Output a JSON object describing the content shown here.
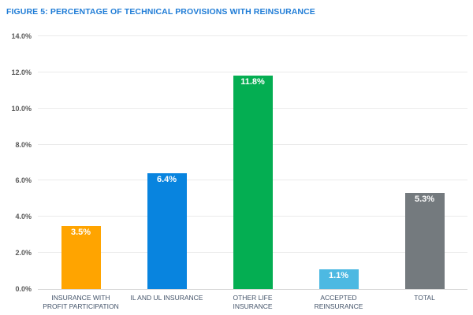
{
  "title": "FIGURE 5: PERCENTAGE OF TECHNICAL PROVISIONS WITH REINSURANCE",
  "colors": {
    "title_text": "#1F7CD6",
    "gridline": "#EBEBEB",
    "axis_line": "#D6D6D6",
    "y_tick_text": "#595959",
    "x_label_text": "#44546A",
    "value_label_text": "#FFFFFF",
    "background": "#FFFFFF"
  },
  "chart_data": {
    "type": "bar",
    "title": "FIGURE 5: PERCENTAGE OF TECHNICAL PROVISIONS WITH REINSURANCE",
    "categories": [
      "INSURANCE WITH PROFIT PARTICIPATION",
      "IL AND UL INSURANCE",
      "OTHER LIFE INSURANCE",
      "ACCEPTED REINSURANCE",
      "TOTAL"
    ],
    "values": [
      3.5,
      6.4,
      11.8,
      1.1,
      5.3
    ],
    "value_labels": [
      "3.5%",
      "6.4%",
      "11.8%",
      "1.1%",
      "5.3%"
    ],
    "bar_colors": [
      "#FFA400",
      "#0884DF",
      "#04AE52",
      "#4DB9E2",
      "#747A7E"
    ],
    "xlabel": "",
    "ylabel": "",
    "ylim": [
      0,
      14
    ],
    "ytick_values": [
      0,
      2,
      4,
      6,
      8,
      10,
      12,
      14
    ],
    "ytick_labels": [
      "0.0%",
      "2.0%",
      "4.0%",
      "6.0%",
      "8.0%",
      "10.0%",
      "12.0%",
      "14.0%"
    ],
    "grid": true,
    "legend_position": "none",
    "value_labels_position": "inside-top"
  }
}
